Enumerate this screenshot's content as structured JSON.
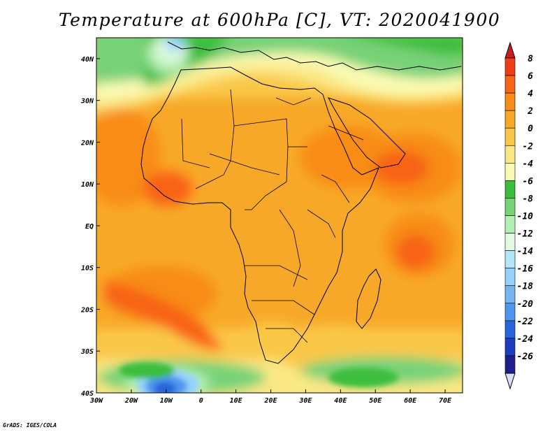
{
  "title": "Temperature at 600hPa [C], VT: 2020041900",
  "credit": "GrADS: IGES/COLA",
  "map": {
    "region": "Africa",
    "projection": "lat-lon",
    "lon_range": [
      -30,
      75
    ],
    "lat_range": [
      -40,
      45
    ],
    "lat_ticks": [
      {
        "value": 40,
        "label": "40N"
      },
      {
        "value": 30,
        "label": "30N"
      },
      {
        "value": 20,
        "label": "20N"
      },
      {
        "value": 10,
        "label": "10N"
      },
      {
        "value": 0,
        "label": "EQ"
      },
      {
        "value": -10,
        "label": "10S"
      },
      {
        "value": -20,
        "label": "20S"
      },
      {
        "value": -30,
        "label": "30S"
      },
      {
        "value": -40,
        "label": "40S"
      }
    ],
    "lon_ticks": [
      {
        "value": -30,
        "label": "30W"
      },
      {
        "value": -20,
        "label": "20W"
      },
      {
        "value": -10,
        "label": "10W"
      },
      {
        "value": 0,
        "label": "0"
      },
      {
        "value": 10,
        "label": "10E"
      },
      {
        "value": 20,
        "label": "20E"
      },
      {
        "value": 30,
        "label": "30E"
      },
      {
        "value": 40,
        "label": "40E"
      },
      {
        "value": 50,
        "label": "50E"
      },
      {
        "value": 60,
        "label": "60E"
      },
      {
        "value": 70,
        "label": "70E"
      }
    ]
  },
  "colorbar": {
    "labels": [
      "8",
      "6",
      "4",
      "2",
      "0",
      "-2",
      "-4",
      "-6",
      "-8",
      "-10",
      "-12",
      "-14",
      "-16",
      "-18",
      "-20",
      "-22",
      "-24",
      "-26"
    ],
    "colors": [
      "#c81e1e",
      "#f03c18",
      "#f86418",
      "#f88c18",
      "#f8a828",
      "#fac848",
      "#fae884",
      "#fafab4",
      "#3cbe3c",
      "#78d278",
      "#b4f0b4",
      "#e1fae1",
      "#b4e6fa",
      "#96d2fa",
      "#78b4f0",
      "#5096f0",
      "#2864dc",
      "#1e3cbe",
      "#1e1e8c",
      "#dcdcfa"
    ]
  }
}
